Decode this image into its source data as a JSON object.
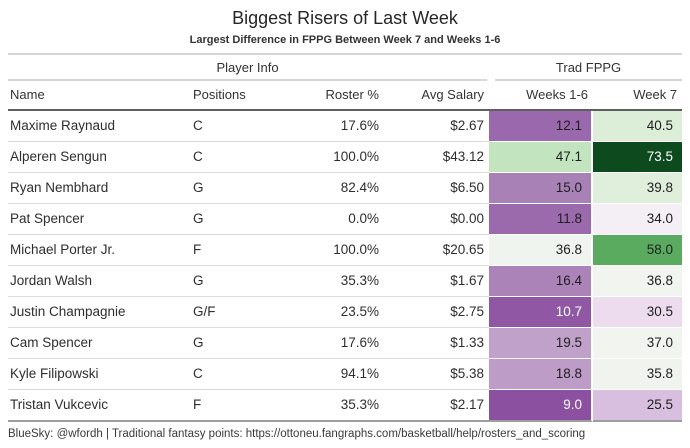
{
  "title": "Biggest Risers of Last Week",
  "subtitle": "Largest Difference in FPPG Between Week 7 and Weeks 1-6",
  "table": {
    "spanners": [
      {
        "label": "Player Info"
      },
      {
        "label": "Trad FPPG"
      }
    ],
    "columns": [
      "Name",
      "Positions",
      "Roster %",
      "Avg Salary",
      "Weeks 1-6",
      "Week 7"
    ],
    "rows": [
      {
        "name": "Maxime Raynaud",
        "positions": "C",
        "roster_pct": "17.6%",
        "avg_salary": "$2.67",
        "weeks_1_6": {
          "value": "12.1",
          "bg": "#9a68ac",
          "fg": "#1f1f1f"
        },
        "week_7": {
          "value": "40.5",
          "bg": "#dcedd8",
          "fg": "#1f1f1f"
        }
      },
      {
        "name": "Alperen Sengun",
        "positions": "C",
        "roster_pct": "100.0%",
        "avg_salary": "$43.12",
        "weeks_1_6": {
          "value": "47.1",
          "bg": "#c2e5bf",
          "fg": "#1f1f1f"
        },
        "week_7": {
          "value": "73.5",
          "bg": "#0d4a1e",
          "fg": "#ffffff"
        }
      },
      {
        "name": "Ryan Nembhard",
        "positions": "G",
        "roster_pct": "82.4%",
        "avg_salary": "$6.50",
        "weeks_1_6": {
          "value": "15.0",
          "bg": "#a881b6",
          "fg": "#1f1f1f"
        },
        "week_7": {
          "value": "39.8",
          "bg": "#e0eedc",
          "fg": "#1f1f1f"
        }
      },
      {
        "name": "Pat Spencer",
        "positions": "G",
        "roster_pct": "0.0%",
        "avg_salary": "$0.00",
        "weeks_1_6": {
          "value": "11.8",
          "bg": "#9b6aad",
          "fg": "#1f1f1f"
        },
        "week_7": {
          "value": "34.0",
          "bg": "#f4eff4",
          "fg": "#1f1f1f"
        }
      },
      {
        "name": "Michael Porter Jr.",
        "positions": "F",
        "roster_pct": "100.0%",
        "avg_salary": "$20.65",
        "weeks_1_6": {
          "value": "36.8",
          "bg": "#f0f4ee",
          "fg": "#1f1f1f"
        },
        "week_7": {
          "value": "58.0",
          "bg": "#5aab60",
          "fg": "#1f1f1f"
        }
      },
      {
        "name": "Jordan Walsh",
        "positions": "G",
        "roster_pct": "35.3%",
        "avg_salary": "$1.67",
        "weeks_1_6": {
          "value": "16.4",
          "bg": "#ab83b9",
          "fg": "#1f1f1f"
        },
        "week_7": {
          "value": "36.8",
          "bg": "#f2f4f0",
          "fg": "#1f1f1f"
        }
      },
      {
        "name": "Justin Champagnie",
        "positions": "G/F",
        "roster_pct": "23.5%",
        "avg_salary": "$2.75",
        "weeks_1_6": {
          "value": "10.7",
          "bg": "#9058a4",
          "fg": "#ffffff"
        },
        "week_7": {
          "value": "30.5",
          "bg": "#ecdcee",
          "fg": "#1f1f1f"
        }
      },
      {
        "name": "Cam Spencer",
        "positions": "G",
        "roster_pct": "17.6%",
        "avg_salary": "$1.33",
        "weeks_1_6": {
          "value": "19.5",
          "bg": "#bfa1c9",
          "fg": "#1f1f1f"
        },
        "week_7": {
          "value": "37.0",
          "bg": "#f2f4f0",
          "fg": "#1f1f1f"
        }
      },
      {
        "name": "Kyle Filipowski",
        "positions": "C",
        "roster_pct": "94.1%",
        "avg_salary": "$5.38",
        "weeks_1_6": {
          "value": "18.8",
          "bg": "#bd9dc8",
          "fg": "#1f1f1f"
        },
        "week_7": {
          "value": "35.8",
          "bg": "#f1f3ef",
          "fg": "#1f1f1f"
        }
      },
      {
        "name": "Tristan Vukcevic",
        "positions": "F",
        "roster_pct": "35.3%",
        "avg_salary": "$2.17",
        "weeks_1_6": {
          "value": "9.0",
          "bg": "#8b51a0",
          "fg": "#ffffff"
        },
        "week_7": {
          "value": "25.5",
          "bg": "#d9bfdf",
          "fg": "#1f1f1f"
        }
      }
    ]
  },
  "footer": "BlueSky: @wfordh | Traditional fantasy points: https://ottoneu.fangraphs.com/basketball/help/rosters_and_scoring",
  "colors": {
    "heat_low_purple": "#8b51a0",
    "heat_high_green": "#0d4a1e",
    "rule_light": "#d6d6d6",
    "rule_dark": "#5f5f5f",
    "text": "#2e2e2e"
  },
  "chart_data": {
    "type": "table",
    "title": "Biggest Risers of Last Week",
    "subtitle": "Largest Difference in FPPG Between Week 7 and Weeks 1-6",
    "column_groups": [
      {
        "label": "Player Info",
        "columns": [
          "Name",
          "Positions",
          "Roster %",
          "Avg Salary"
        ]
      },
      {
        "label": "Trad FPPG",
        "columns": [
          "Weeks 1-6",
          "Week 7"
        ]
      }
    ],
    "columns": [
      "Name",
      "Positions",
      "Roster %",
      "Avg Salary",
      "Weeks 1-6",
      "Week 7"
    ],
    "rows": [
      [
        "Maxime Raynaud",
        "C",
        "17.6%",
        "$2.67",
        12.1,
        40.5
      ],
      [
        "Alperen Sengun",
        "C",
        "100.0%",
        "$43.12",
        47.1,
        73.5
      ],
      [
        "Ryan Nembhard",
        "G",
        "82.4%",
        "$6.50",
        15.0,
        39.8
      ],
      [
        "Pat Spencer",
        "G",
        "0.0%",
        "$0.00",
        11.8,
        34.0
      ],
      [
        "Michael Porter Jr.",
        "F",
        "100.0%",
        "$20.65",
        36.8,
        58.0
      ],
      [
        "Jordan Walsh",
        "G",
        "35.3%",
        "$1.67",
        16.4,
        36.8
      ],
      [
        "Justin Champagnie",
        "G/F",
        "23.5%",
        "$2.75",
        10.7,
        30.5
      ],
      [
        "Cam Spencer",
        "G",
        "17.6%",
        "$1.33",
        19.5,
        37.0
      ],
      [
        "Kyle Filipowski",
        "C",
        "94.1%",
        "$5.38",
        18.8,
        35.8
      ],
      [
        "Tristan Vukcevic",
        "F",
        "35.3%",
        "$2.17",
        9.0,
        25.5
      ]
    ],
    "heatmap_columns": [
      "Weeks 1-6",
      "Week 7"
    ],
    "colormap": "purple-white-green diverging (low FPPG purple, high FPPG green)",
    "footnote": "BlueSky: @wfordh | Traditional fantasy points: https://ottoneu.fangraphs.com/basketball/help/rosters_and_scoring"
  }
}
